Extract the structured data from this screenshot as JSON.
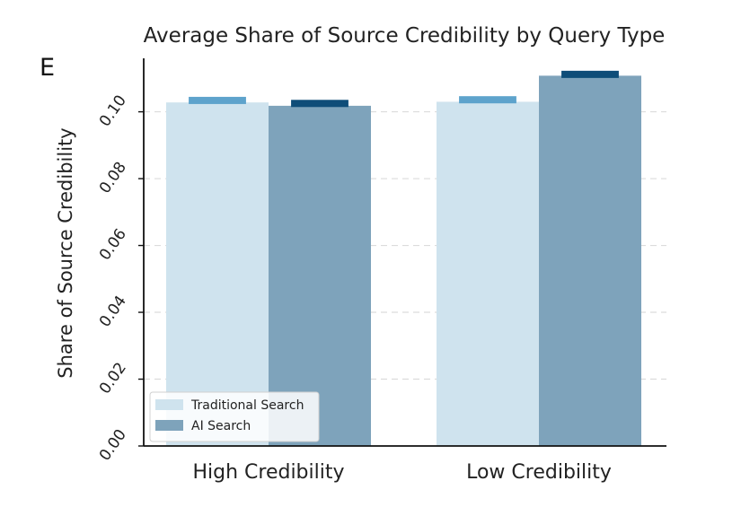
{
  "panel_label": "E",
  "chart_data": {
    "type": "bar",
    "title": "Average Share of Source Credibility by Query Type",
    "xlabel": "",
    "ylabel": "Share of Source Credibility",
    "ylim": [
      0,
      0.116
    ],
    "yticks": [
      0.0,
      0.02,
      0.04,
      0.06,
      0.08,
      0.1
    ],
    "ytick_labels": [
      "0.00",
      "0.02",
      "0.04",
      "0.06",
      "0.08",
      "0.10"
    ],
    "categories": [
      "High Credibility",
      "Low Credibility"
    ],
    "grid": true,
    "legend_position": "lower-left",
    "series": [
      {
        "name": "Traditional Search",
        "values": [
          0.1028,
          0.103
        ],
        "error_marker": [
          0.1034,
          0.1036
        ],
        "color": "#cfe3ee",
        "marker_color": "#5ea3cc"
      },
      {
        "name": "AI Search",
        "values": [
          0.1018,
          0.1108
        ],
        "error_marker": [
          0.1025,
          0.1112
        ],
        "color": "#7ea3bb",
        "marker_color": "#0f4d78"
      }
    ]
  }
}
